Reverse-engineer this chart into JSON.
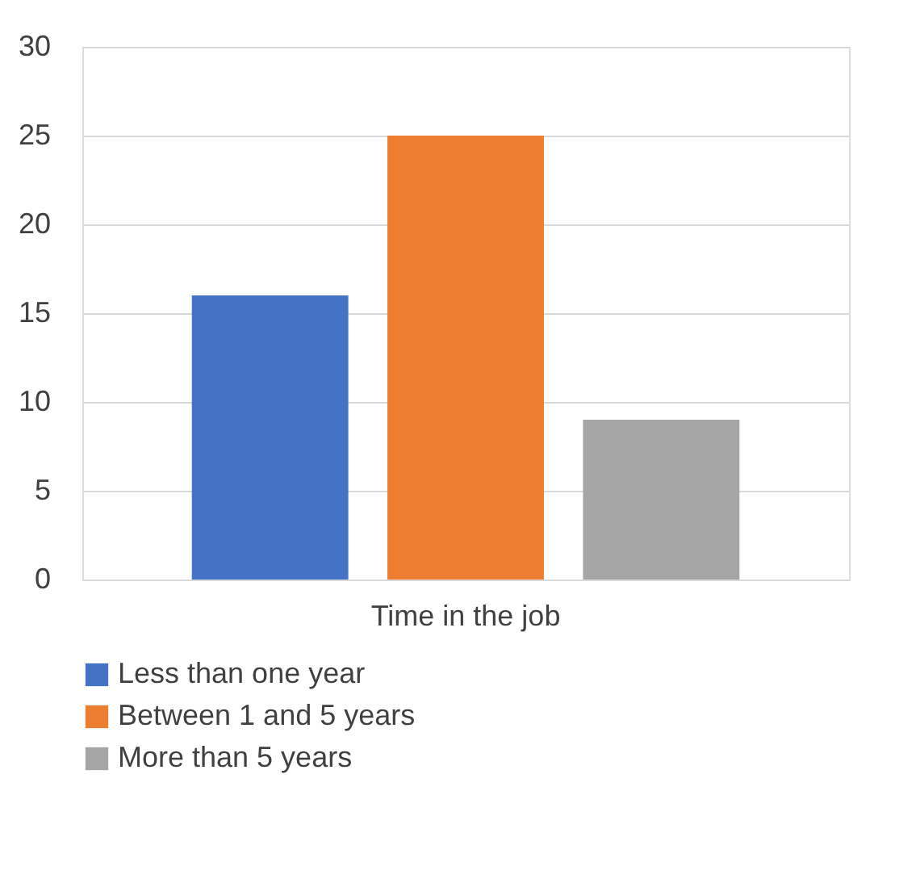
{
  "chart_data": {
    "type": "bar",
    "categories": [
      "Time in the job"
    ],
    "series": [
      {
        "name": "Less than one year",
        "color": "#4472c4",
        "values": [
          16
        ]
      },
      {
        "name": "Between 1 and 5 years",
        "color": "#ed7d31",
        "values": [
          25
        ]
      },
      {
        "name": "More than 5 years",
        "color": "#a5a5a5",
        "values": [
          9
        ]
      }
    ],
    "ylim": [
      0,
      30
    ],
    "yticks": [
      0,
      5,
      10,
      15,
      20,
      25,
      30
    ],
    "grid": "y",
    "legend": "bottom"
  }
}
